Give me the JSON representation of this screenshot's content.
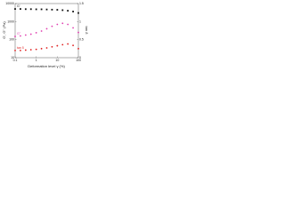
{
  "chart_data": {
    "type": "line",
    "x_label": "Deformation level γ (%)",
    "y_label": "G', G'' (Pa)",
    "y2_label": "tan δ",
    "x": [
      0.1,
      0.178,
      0.316,
      0.562,
      1,
      1.78,
      3.16,
      5.62,
      10,
      17.8,
      31.6,
      56.2,
      100
    ],
    "xlim": [
      0.1,
      100
    ],
    "xticks": [
      0.1,
      1,
      10,
      100
    ],
    "xlog": true,
    "ylim": [
      10,
      10000
    ],
    "yticks": [
      10,
      100,
      1000,
      10000
    ],
    "ylog": true,
    "y2lim": [
      0,
      1.5
    ],
    "y2ticks": [
      0,
      0.5,
      1,
      1.5
    ],
    "series": [
      {
        "name": "G'",
        "color": "#111111",
        "marker": "square",
        "values": [
          5000,
          5000,
          4900,
          4900,
          4800,
          4800,
          4700,
          4600,
          4500,
          4300,
          4000,
          3600,
          3000
        ]
      },
      {
        "name": "G''",
        "color": "#e040b0",
        "marker": "circle",
        "values": [
          150,
          160,
          180,
          200,
          240,
          300,
          400,
          550,
          700,
          800,
          700,
          450,
          250
        ]
      },
      {
        "name": "tan δ",
        "color": "#e02020",
        "marker": "circle",
        "axis": "y2",
        "values": [
          0.2,
          0.2,
          0.21,
          0.22,
          0.23,
          0.25,
          0.27,
          0.3,
          0.33,
          0.36,
          0.38,
          0.34,
          0.25
        ]
      }
    ]
  }
}
